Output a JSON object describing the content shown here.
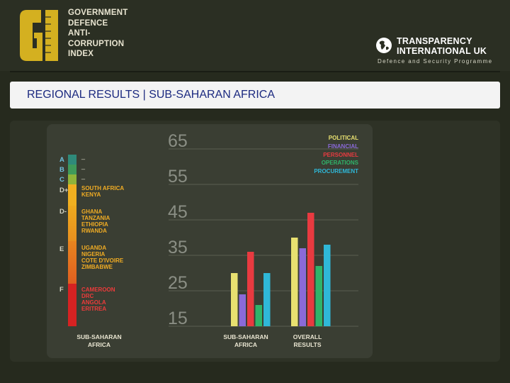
{
  "header": {
    "logo_text": "GI",
    "gov_lines": [
      "GOVERNMENT",
      "DEFENCE",
      "ANTI-",
      "CORRUPTION",
      "INDEX"
    ],
    "ti_name": [
      "TRANSPARENCY",
      "INTERNATIONAL UK"
    ],
    "ti_sub": "Defence and Security Programme"
  },
  "banner": {
    "title": "REGIONAL RESULTS | SUB-SAHARAN AFRICA"
  },
  "scale": {
    "bands": [
      {
        "letter": "A",
        "color": "#2f8a7a",
        "dash": "_"
      },
      {
        "letter": "B",
        "color": "#3f9a5a",
        "dash": "_"
      },
      {
        "letter": "C",
        "color": "#8fb43a",
        "dash": "_"
      },
      {
        "letter": "D+",
        "color": "#f0b020",
        "dash": ""
      },
      {
        "letter": "D-",
        "color": "#eeaa1e",
        "dash": ""
      },
      {
        "letter": "E",
        "color": "#e57a22",
        "dash": ""
      },
      {
        "letter": "F",
        "color": "#d62222",
        "dash": ""
      }
    ],
    "countries": {
      "d_plus": [
        "SOUTH AFRICA",
        "KENYA"
      ],
      "d_minus": [
        "GHANA",
        "TANZANIA",
        "ETHIOPIA",
        "RWANDA"
      ],
      "e": [
        "UGANDA",
        "NIGERIA",
        "COTE D'IVOIRE",
        "ZIMBABWE"
      ],
      "f": [
        "CAMEROON",
        "DRC",
        "ANGOLA",
        "ERITREA"
      ]
    },
    "region_label": [
      "SUB-SAHARAN",
      "AFRICA"
    ]
  },
  "chart_data": {
    "type": "bar",
    "categories": [
      "SUB-SAHARAN AFRICA",
      "OVERALL RESULTS"
    ],
    "category_lines": [
      [
        "SUB-SAHARAN",
        "AFRICA"
      ],
      [
        "OVERALL",
        "RESULTS"
      ]
    ],
    "series": [
      {
        "name": "POLITICAL",
        "color": "#e8e070",
        "values": [
          30,
          40
        ]
      },
      {
        "name": "FINANCIAL",
        "color": "#8a6ad8",
        "values": [
          24,
          37
        ]
      },
      {
        "name": "PERSONNEL",
        "color": "#e83a40",
        "values": [
          36,
          47
        ]
      },
      {
        "name": "OPERATIONS",
        "color": "#2fb46a",
        "values": [
          21,
          32
        ]
      },
      {
        "name": "PROCUREMENT",
        "color": "#2fb8d8",
        "values": [
          30,
          38
        ]
      }
    ],
    "yticks": [
      65,
      55,
      45,
      35,
      25,
      15
    ],
    "ylim": [
      15,
      65
    ],
    "grid": true,
    "legend": "top-right"
  }
}
